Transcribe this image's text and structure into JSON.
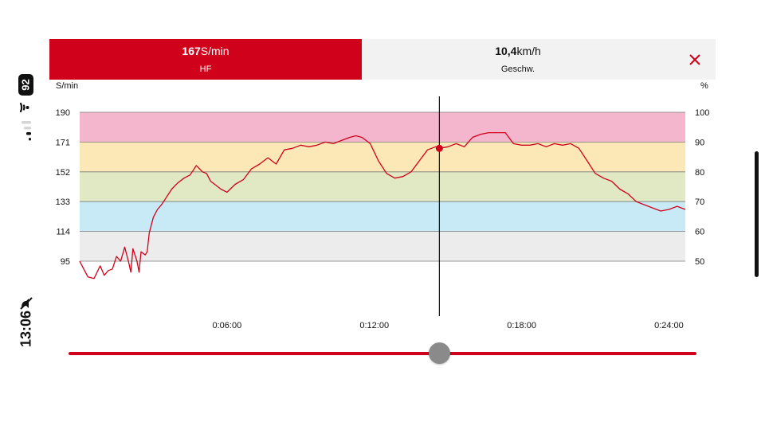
{
  "status": {
    "battery_level": "92",
    "time": "13:06",
    "icons": [
      "wifi-icon",
      "signal-icon",
      "mute-icon"
    ]
  },
  "header": {
    "hr": {
      "value": "167",
      "unit": "S/min",
      "label": "HF",
      "active": true
    },
    "speed": {
      "value": "10,4",
      "unit": "km/h",
      "label": "Geschw.",
      "active": false
    },
    "close_icon": "close-icon"
  },
  "colors": {
    "accent": "#d0021b",
    "zone_red": "#f4b6cc",
    "zone_yellow": "#fbe8b6",
    "zone_green": "#e0e8c4",
    "zone_blue": "#c8eaf6",
    "zone_gray": "#ececec",
    "slider_thumb": "#8a8a8a"
  },
  "chart_data": {
    "type": "line",
    "title": "",
    "xlabel": "",
    "ylabel": "S/min",
    "y2label": "%",
    "x_ticks": [
      "0:06:00",
      "0:12:00",
      "0:18:00",
      "0:24:00"
    ],
    "y_ticks": [
      "190",
      "171",
      "152",
      "133",
      "114",
      "95"
    ],
    "y2_ticks": [
      "100",
      "90",
      "80",
      "70",
      "60",
      "50"
    ],
    "ylim": [
      95,
      190
    ],
    "zones": [
      {
        "from": 171,
        "to": 190,
        "color_key": "zone_red"
      },
      {
        "from": 152,
        "to": 171,
        "color_key": "zone_yellow"
      },
      {
        "from": 133,
        "to": 152,
        "color_key": "zone_green"
      },
      {
        "from": 114,
        "to": 133,
        "color_key": "zone_blue"
      },
      {
        "from": 95,
        "to": 114,
        "color_key": "zone_gray"
      }
    ],
    "cursor": {
      "time": "0:14:39",
      "value": 167
    },
    "series": [
      {
        "x": [
          "0:00:00",
          "0:00:10",
          "0:00:20",
          "0:00:35",
          "0:00:50",
          "0:01:00",
          "0:01:10",
          "0:01:20",
          "0:01:30",
          "0:01:40",
          "0:01:50",
          "0:02:00",
          "0:02:05",
          "0:02:10",
          "0:02:20",
          "0:02:25",
          "0:02:30",
          "0:02:40",
          "0:02:45",
          "0:02:50",
          "0:03:00",
          "0:03:10",
          "0:03:20",
          "0:03:30",
          "0:03:45",
          "0:04:00",
          "0:04:15",
          "0:04:30",
          "0:04:45",
          "0:05:00",
          "0:05:10",
          "0:05:20",
          "0:05:30",
          "0:05:45",
          "0:06:00",
          "0:06:20",
          "0:06:40",
          "0:07:00",
          "0:07:20",
          "0:07:40",
          "0:08:00",
          "0:08:20",
          "0:08:40",
          "0:09:00",
          "0:09:20",
          "0:09:40",
          "0:10:00",
          "0:10:20",
          "0:10:40",
          "0:11:00",
          "0:11:15",
          "0:11:30",
          "0:11:50",
          "0:12:10",
          "0:12:30",
          "0:12:50",
          "0:13:10",
          "0:13:30",
          "0:13:50",
          "0:14:10",
          "0:14:30",
          "0:14:39",
          "0:15:00",
          "0:15:20",
          "0:15:40",
          "0:16:00",
          "0:16:20",
          "0:16:40",
          "0:17:00",
          "0:17:20",
          "0:17:40",
          "0:18:00",
          "0:18:20",
          "0:18:40",
          "0:19:00",
          "0:19:20",
          "0:19:40",
          "0:20:00",
          "0:20:20",
          "0:20:40",
          "0:21:00",
          "0:21:20",
          "0:21:40",
          "0:22:00",
          "0:22:20",
          "0:22:40",
          "0:23:00",
          "0:23:20",
          "0:23:40",
          "0:24:00",
          "0:24:20",
          "0:24:40"
        ],
        "values": [
          95,
          90,
          85,
          84,
          92,
          86,
          89,
          90,
          98,
          95,
          104,
          94,
          88,
          103,
          95,
          88,
          101,
          99,
          101,
          113,
          123,
          128,
          131,
          135,
          141,
          145,
          148,
          150,
          156,
          152,
          151,
          146,
          144,
          141,
          139,
          144,
          147,
          154,
          157,
          161,
          157,
          166,
          167,
          169,
          168,
          169,
          171,
          170,
          172,
          174,
          175,
          174,
          170,
          159,
          151,
          148,
          149,
          152,
          159,
          166,
          168,
          167,
          168,
          170,
          168,
          174,
          176,
          177,
          177,
          177,
          170,
          169,
          169,
          170,
          168,
          170,
          169,
          170,
          167,
          159,
          151,
          148,
          146,
          141,
          138,
          133,
          131,
          129,
          127,
          128,
          130,
          128
        ]
      }
    ]
  },
  "slider": {
    "position": 0.591
  }
}
